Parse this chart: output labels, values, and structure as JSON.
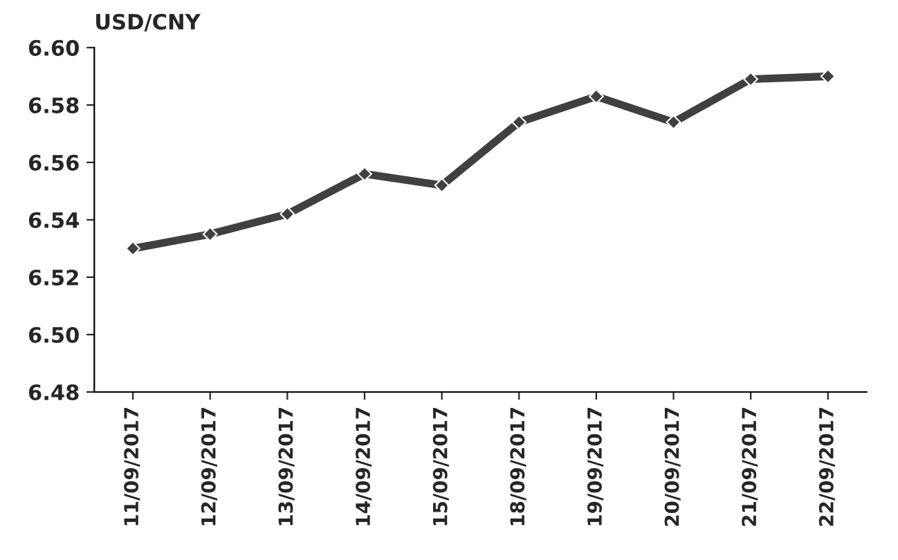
{
  "chart_data": {
    "type": "line",
    "ylabel": "USD/CNY",
    "categories": [
      "11/09/2017",
      "12/09/2017",
      "13/09/2017",
      "14/09/2017",
      "15/09/2017",
      "18/09/2017",
      "19/09/2017",
      "20/09/2017",
      "21/09/2017",
      "22/09/2017"
    ],
    "series": [
      {
        "color": "#404040",
        "values": [
          6.53,
          6.535,
          6.542,
          6.556,
          6.552,
          6.574,
          6.583,
          6.574,
          6.589,
          6.59
        ]
      }
    ],
    "ylim": [
      6.48,
      6.6
    ],
    "yticks": [
      {
        "value": 6.48,
        "label": "6.48"
      },
      {
        "value": 6.5,
        "label": "6.50"
      },
      {
        "value": 6.52,
        "label": "6.52"
      },
      {
        "value": 6.54,
        "label": "6.54"
      },
      {
        "value": 6.56,
        "label": "6.56"
      },
      {
        "value": 6.58,
        "label": "6.58"
      },
      {
        "value": 6.6,
        "label": "6.60"
      }
    ],
    "grid": false,
    "legend": false,
    "marker": "diamond",
    "line_style": "solid"
  }
}
